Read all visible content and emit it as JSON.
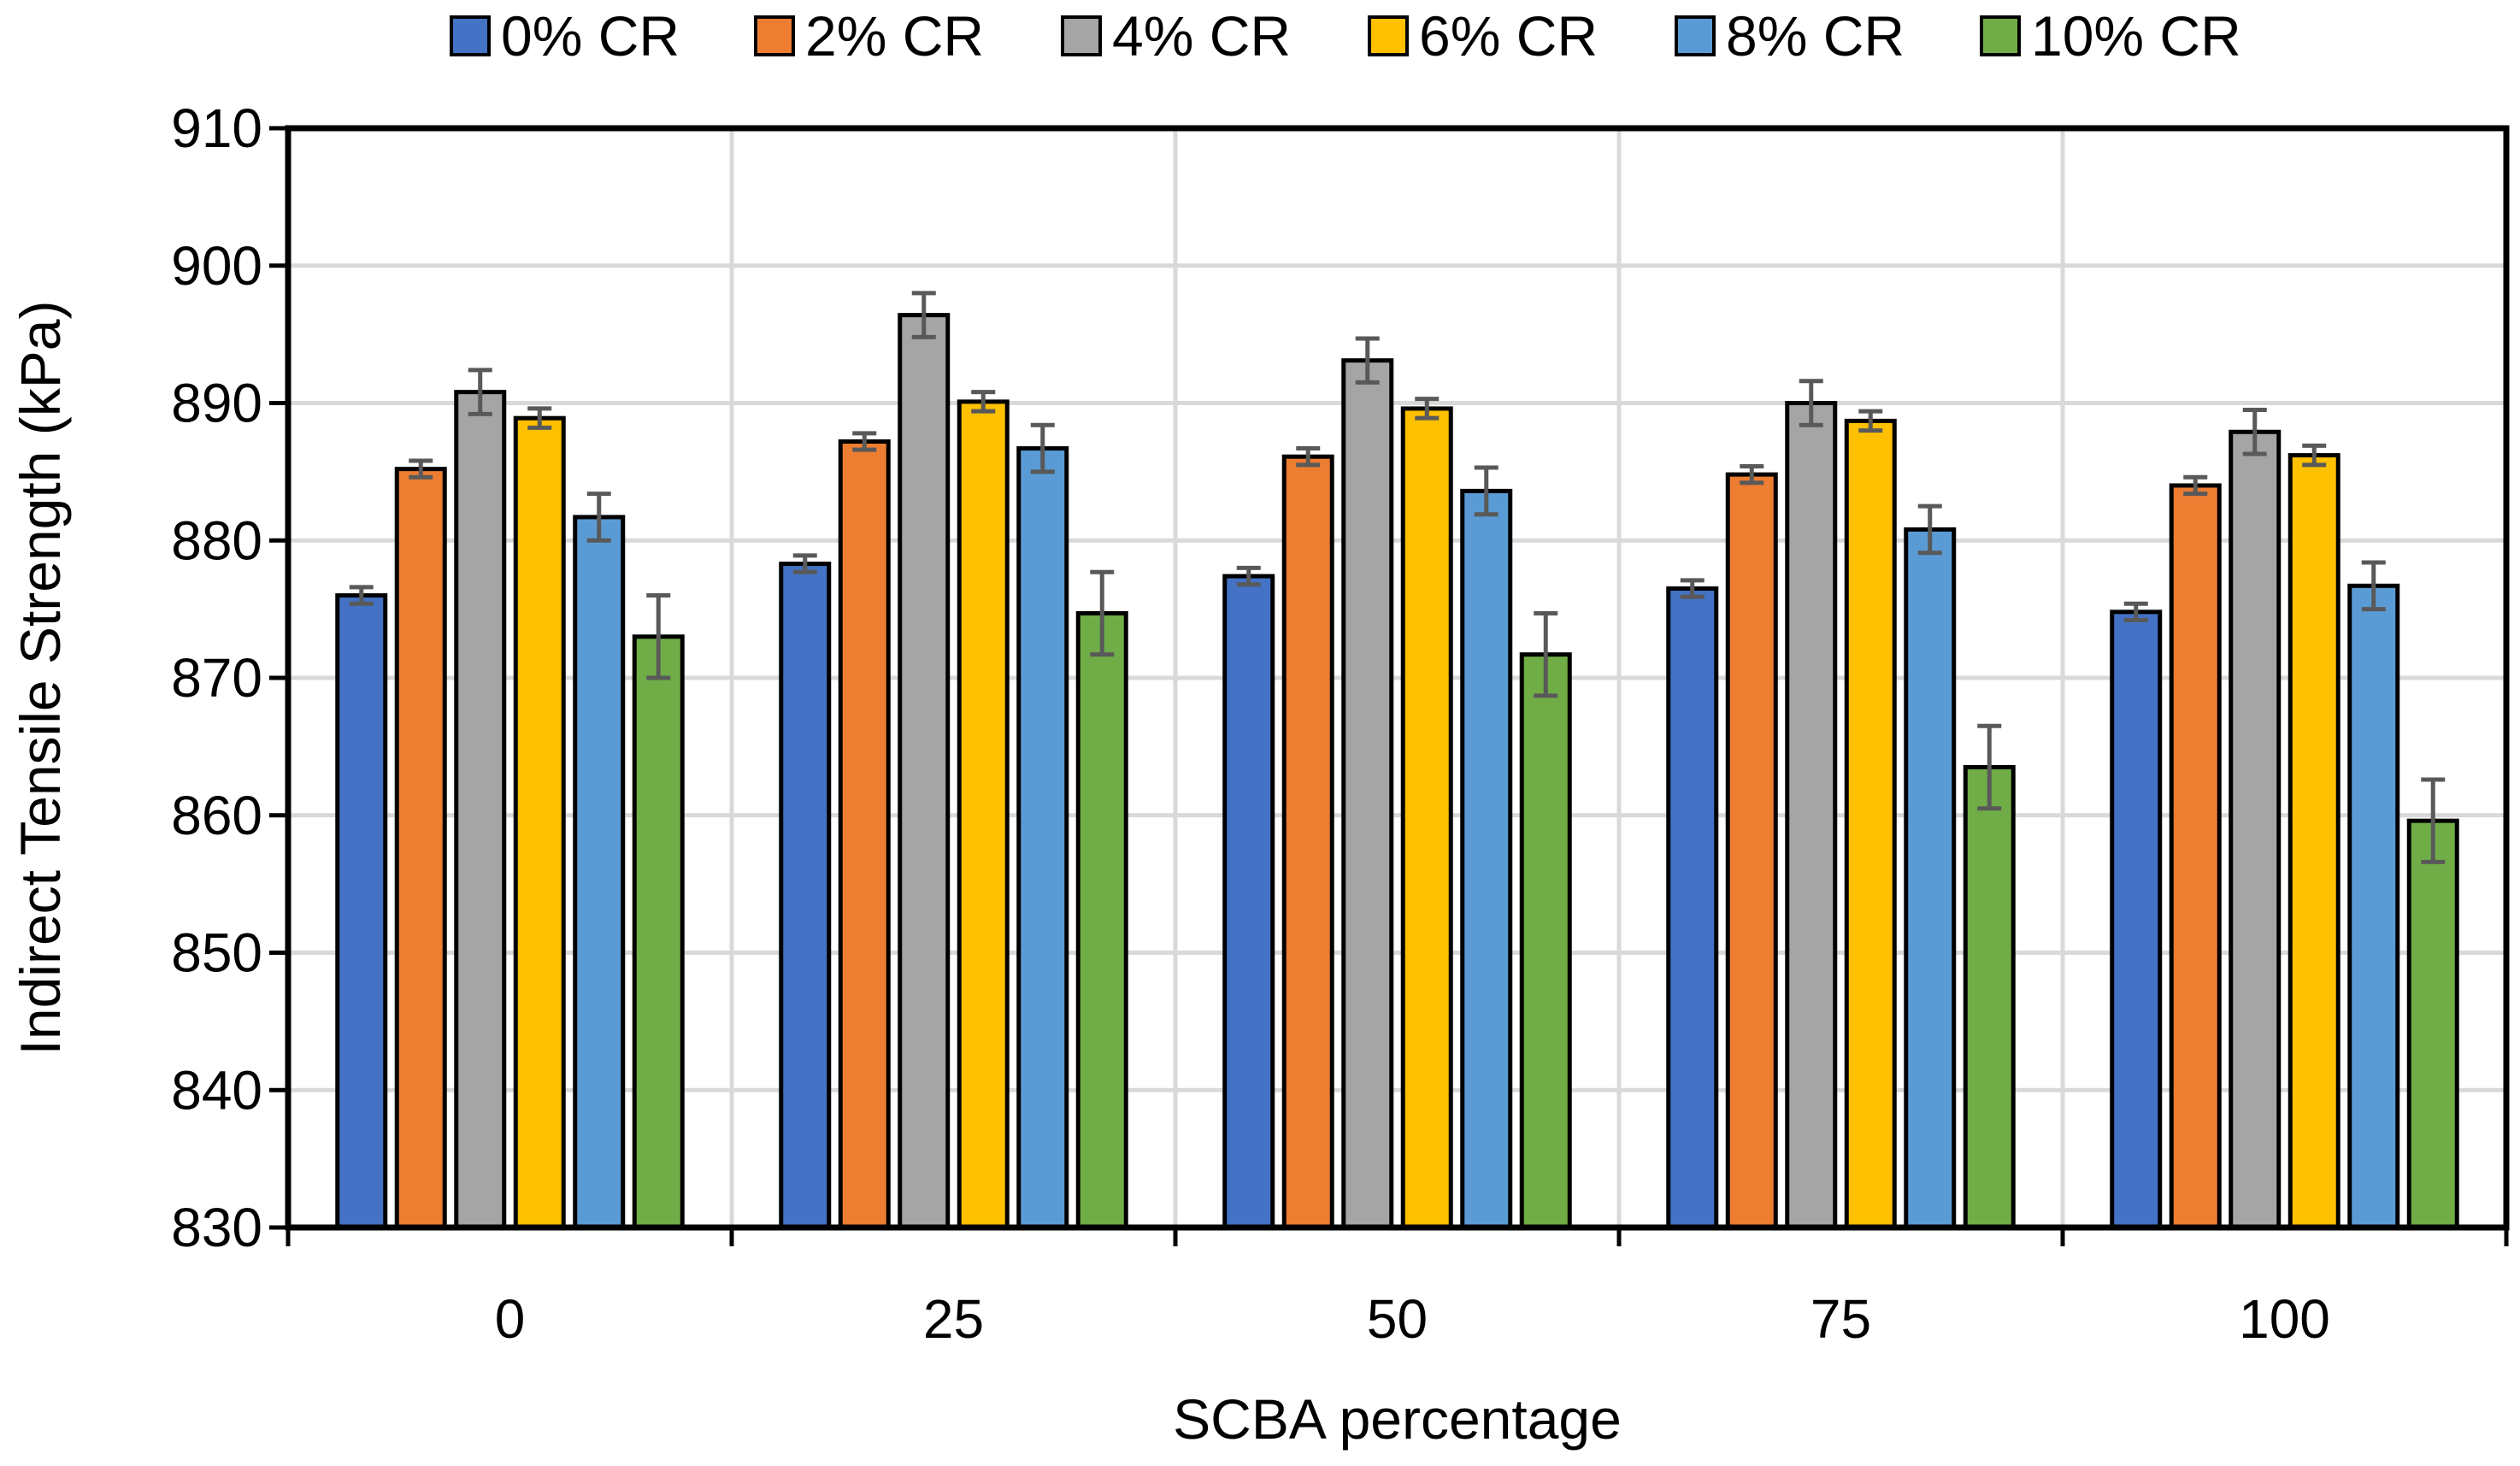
{
  "chart_data": {
    "type": "bar",
    "title": "",
    "xlabel": "SCBA percentage",
    "ylabel": "Indirect Tensile Strength (kPa)",
    "categories": [
      "0",
      "25",
      "50",
      "75",
      "100"
    ],
    "ylim": [
      830,
      910
    ],
    "ytick_step": 10,
    "yticks": [
      "830",
      "840",
      "850",
      "860",
      "870",
      "880",
      "890",
      "900",
      "910"
    ],
    "grid": true,
    "legend_position": "top",
    "series": [
      {
        "name": "0% CR",
        "color": "#4472C4",
        "values": [
          876.0,
          878.3,
          877.4,
          876.5,
          874.8
        ],
        "errors": [
          0.6,
          0.6,
          0.6,
          0.6,
          0.6
        ]
      },
      {
        "name": "2% CR",
        "color": "#ED7D31",
        "values": [
          885.2,
          887.2,
          886.1,
          884.8,
          884.0
        ],
        "errors": [
          0.6,
          0.6,
          0.6,
          0.6,
          0.6
        ]
      },
      {
        "name": "4% CR",
        "color": "#A5A5A5",
        "values": [
          890.8,
          896.4,
          893.1,
          890.0,
          887.9
        ],
        "errors": [
          1.6,
          1.6,
          1.6,
          1.6,
          1.6
        ]
      },
      {
        "name": "6% CR",
        "color": "#FFC000",
        "values": [
          888.9,
          890.1,
          889.6,
          888.7,
          886.2
        ],
        "errors": [
          0.7,
          0.7,
          0.7,
          0.7,
          0.7
        ]
      },
      {
        "name": "8% CR",
        "color": "#5B9BD5",
        "values": [
          881.7,
          886.7,
          883.6,
          880.8,
          876.7
        ],
        "errors": [
          1.7,
          1.7,
          1.7,
          1.7,
          1.7
        ]
      },
      {
        "name": "10% CR",
        "color": "#70AD47",
        "values": [
          873.0,
          874.7,
          871.7,
          863.5,
          859.6
        ],
        "errors": [
          3.0,
          3.0,
          3.0,
          3.0,
          3.0
        ]
      }
    ]
  }
}
